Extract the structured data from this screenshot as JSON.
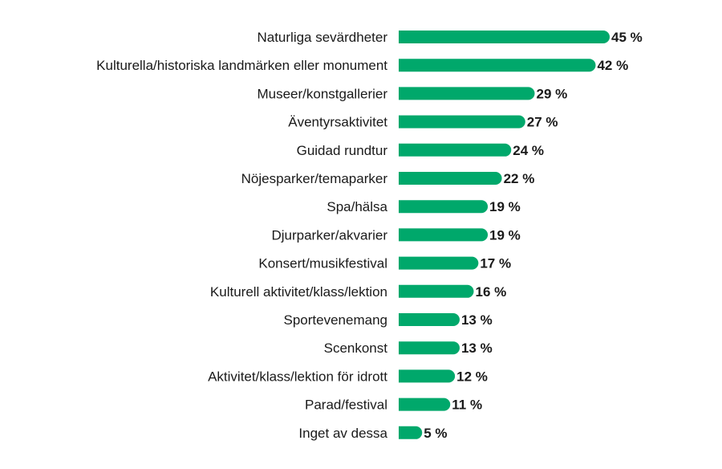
{
  "colors": {
    "bar": "#00a86b",
    "text": "#1a1a1a",
    "background": "#ffffff"
  },
  "chart_data": {
    "type": "bar",
    "orientation": "horizontal",
    "value_suffix": " %",
    "xlim": [
      0,
      45
    ],
    "grid": false,
    "legend": "none",
    "categories": [
      "Naturliga sevärdheter",
      "Kulturella/historiska landmärken eller monument",
      "Museer/konstgallerier",
      "Äventyrsaktivitet",
      "Guidad rundtur",
      "Nöjesparker/temaparker",
      "Spa/hälsa",
      "Djurparker/akvarier",
      "Konsert/musikfestival",
      "Kulturell aktivitet/klass/lektion",
      "Sportevenemang",
      "Scenkonst",
      "Aktivitet/klass/lektion för idrott",
      "Parad/festival",
      "Inget av dessa"
    ],
    "values": [
      45,
      42,
      29,
      27,
      24,
      22,
      19,
      19,
      17,
      16,
      13,
      13,
      12,
      11,
      5
    ],
    "value_labels": [
      "45 %",
      "42 %",
      "29 %",
      "27 %",
      "24 %",
      "22 %",
      "19 %",
      "19 %",
      "17 %",
      "16 %",
      "13 %",
      "13 %",
      "12 %",
      "11 %",
      "5 %"
    ]
  }
}
